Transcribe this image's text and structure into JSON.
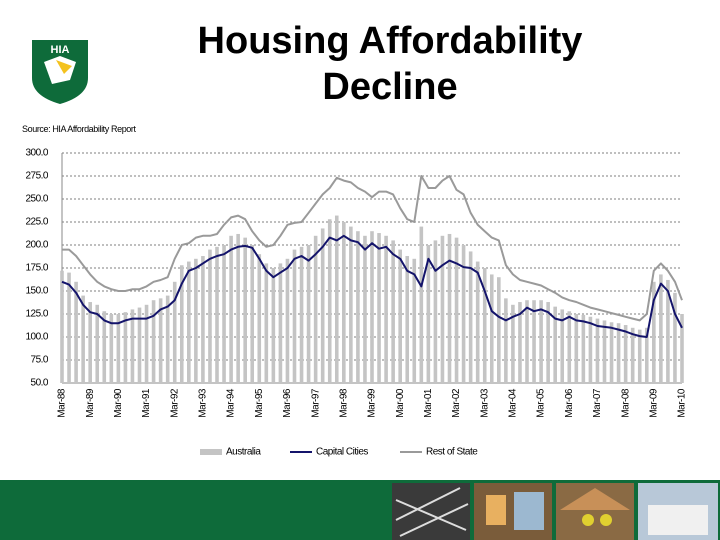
{
  "chart_data": {
    "type": "bar-line",
    "title": "Housing Affordability Decline",
    "source": "Source: HIA Affordability Report",
    "categories": [
      "Mar-88",
      null,
      null,
      null,
      "Mar-89",
      null,
      null,
      null,
      "Mar-90",
      null,
      null,
      null,
      "Mar-91",
      null,
      null,
      null,
      "Mar-92",
      null,
      null,
      null,
      "Mar-93",
      null,
      null,
      null,
      "Mar-94",
      null,
      null,
      null,
      "Mar-95",
      null,
      null,
      null,
      "Mar-96",
      null,
      null,
      null,
      "Mar-97",
      null,
      null,
      null,
      "Mar-98",
      null,
      null,
      null,
      "Mar-99",
      null,
      null,
      null,
      "Mar-00",
      null,
      null,
      null,
      "Mar-01",
      null,
      null,
      null,
      "Mar-02",
      null,
      null,
      null,
      "Mar-03",
      null,
      null,
      null,
      "Mar-04",
      null,
      null,
      null,
      "Mar-05",
      null,
      null,
      null,
      "Mar-06",
      null,
      null,
      null,
      "Mar-07",
      null,
      null,
      null,
      "Mar-08",
      null,
      null,
      null,
      "Mar-09",
      null,
      null,
      null,
      "Mar-10"
    ],
    "series": [
      {
        "name": "Australia",
        "kind": "bar",
        "color": "#c4c4c4",
        "values": [
          172,
          170,
          160,
          145,
          138,
          135,
          128,
          125,
          125,
          127,
          130,
          132,
          135,
          140,
          142,
          145,
          160,
          178,
          182,
          185,
          188,
          195,
          198,
          200,
          210,
          212,
          208,
          200,
          190,
          180,
          175,
          180,
          185,
          195,
          198,
          200,
          210,
          218,
          228,
          232,
          225,
          220,
          215,
          210,
          215,
          213,
          210,
          205,
          195,
          188,
          185,
          220,
          200,
          205,
          210,
          212,
          208,
          200,
          193,
          182,
          175,
          168,
          165,
          142,
          135,
          138,
          140,
          140,
          140,
          138,
          133,
          130,
          128,
          125,
          124,
          122,
          120,
          118,
          116,
          115,
          113,
          110,
          108,
          110,
          160,
          168,
          162,
          148,
          125
        ]
      },
      {
        "name": "Capital Cities",
        "kind": "line",
        "color": "#14146b",
        "values": [
          160,
          157,
          148,
          135,
          127,
          125,
          118,
          115,
          115,
          118,
          120,
          120,
          120,
          123,
          130,
          133,
          140,
          158,
          172,
          175,
          180,
          185,
          188,
          190,
          195,
          198,
          199,
          197,
          185,
          172,
          165,
          170,
          175,
          185,
          188,
          183,
          190,
          198,
          208,
          205,
          210,
          205,
          203,
          195,
          202,
          196,
          198,
          190,
          185,
          172,
          168,
          155,
          185,
          172,
          178,
          183,
          180,
          176,
          175,
          170,
          150,
          128,
          122,
          118,
          122,
          125,
          132,
          128,
          130,
          127,
          120,
          118,
          122,
          118,
          117,
          115,
          112,
          111,
          110,
          108,
          106,
          103,
          101,
          100,
          140,
          158,
          150,
          125,
          110
        ]
      },
      {
        "name": "Rest of State",
        "kind": "line",
        "color": "#9a9a9a",
        "values": [
          195,
          195,
          188,
          178,
          168,
          160,
          155,
          152,
          150,
          150,
          152,
          152,
          155,
          160,
          162,
          165,
          185,
          200,
          202,
          208,
          210,
          210,
          212,
          222,
          230,
          232,
          228,
          215,
          205,
          198,
          200,
          210,
          222,
          224,
          225,
          235,
          245,
          255,
          262,
          273,
          270,
          268,
          262,
          258,
          252,
          258,
          258,
          255,
          240,
          228,
          225,
          275,
          262,
          262,
          270,
          275,
          260,
          255,
          235,
          222,
          215,
          208,
          205,
          178,
          168,
          162,
          160,
          158,
          156,
          152,
          148,
          143,
          140,
          138,
          135,
          132,
          130,
          128,
          126,
          124,
          122,
          120,
          118,
          125,
          172,
          180,
          172,
          160,
          140
        ]
      }
    ],
    "ylim": [
      50,
      300
    ],
    "yticks": [
      {
        "value": 50,
        "label": "50.0"
      },
      {
        "value": 75,
        "label": "75.0"
      },
      {
        "value": 100,
        "label": "100.0"
      },
      {
        "value": 125,
        "label": "125.0"
      },
      {
        "value": 150,
        "label": "150.0"
      },
      {
        "value": 175,
        "label": "175.0"
      },
      {
        "value": 200,
        "label": "200.0"
      },
      {
        "value": 225,
        "label": "225.0"
      },
      {
        "value": 250,
        "label": "250.0"
      },
      {
        "value": 275,
        "label": "275.0"
      },
      {
        "value": 300,
        "label": "300.0"
      }
    ],
    "grid": true,
    "legend": "bottom"
  }
}
